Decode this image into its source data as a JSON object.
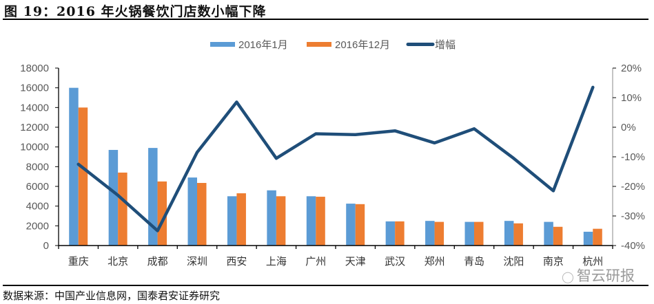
{
  "figure": {
    "title": "图 19：2016 年火锅餐饮门店数小幅下降",
    "source": "数据来源：中国产业信息网，国泰君安证券研究",
    "watermark": "智云研报",
    "watermark_icon": "wechat-icon"
  },
  "colors": {
    "jan": "#5B9BD5",
    "dec": "#ED7D31",
    "growth": "#1F4E79",
    "axis": "#000000",
    "tick_label": "#595959"
  },
  "chart_data": {
    "type": "bar",
    "title": "2016 年火锅餐饮门店数小幅下降",
    "xlabel": "",
    "ylabel": "",
    "categories": [
      "重庆",
      "北京",
      "成都",
      "深圳",
      "西安",
      "上海",
      "广州",
      "天津",
      "武汉",
      "郑州",
      "青岛",
      "沈阳",
      "南京",
      "杭州"
    ],
    "series": [
      {
        "name": "2016年1月",
        "type": "bar",
        "axis": "left",
        "values": [
          16000,
          9700,
          9900,
          6900,
          5000,
          5600,
          5000,
          4250,
          2450,
          2500,
          2400,
          2500,
          2400,
          1400
        ]
      },
      {
        "name": "2016年12月",
        "type": "bar",
        "axis": "left",
        "values": [
          14000,
          7400,
          6500,
          6350,
          5300,
          5000,
          4950,
          4200,
          2450,
          2400,
          2400,
          2250,
          1900,
          1700
        ]
      },
      {
        "name": "增幅",
        "type": "line",
        "axis": "right",
        "unit": "%",
        "values": [
          -12.5,
          -23,
          -35,
          -8.5,
          8.5,
          -10.5,
          -2.2,
          -2.5,
          -1.2,
          -5.3,
          -0.5,
          -10.5,
          -21.5,
          13.5
        ]
      }
    ],
    "ylim": [
      0,
      18000
    ],
    "yticks": [
      0,
      2000,
      4000,
      6000,
      8000,
      10000,
      12000,
      14000,
      16000,
      18000
    ],
    "y2lim": [
      -40,
      20
    ],
    "y2ticks": [
      "-40%",
      "-30%",
      "-20%",
      "-10%",
      "0%",
      "10%",
      "20%"
    ],
    "legend": [
      "2016年1月",
      "2016年12月",
      "增幅"
    ],
    "legend_position": "top",
    "grid": false
  }
}
